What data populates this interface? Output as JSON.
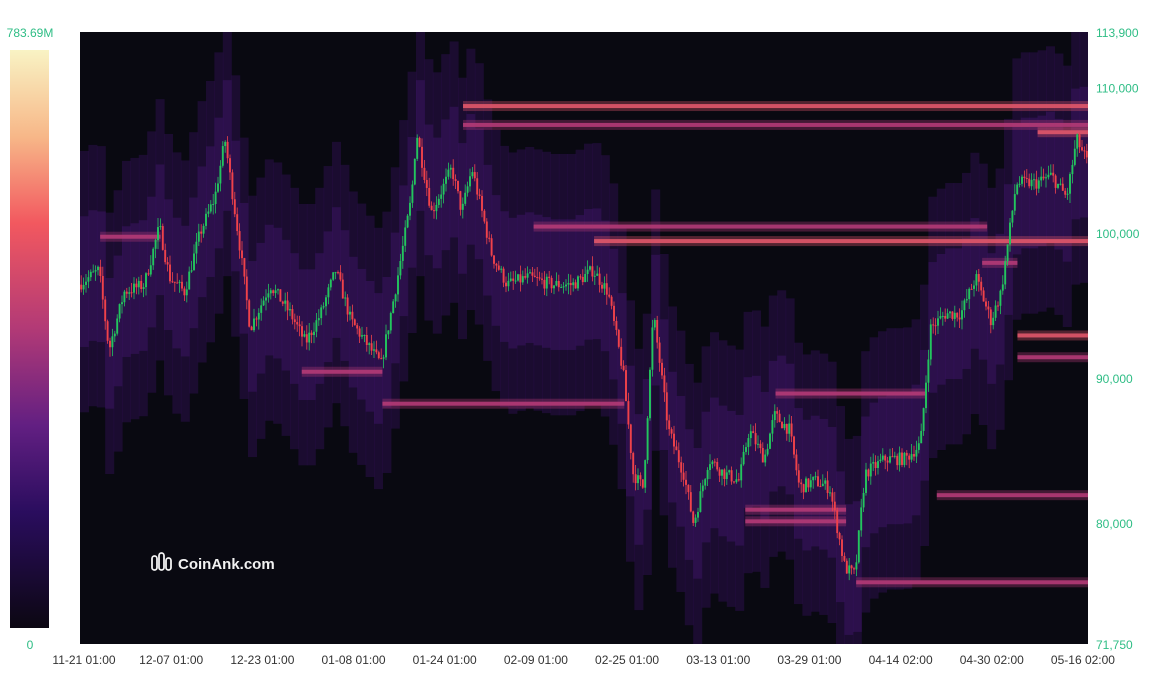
{
  "chart_data": {
    "type": "heatmap",
    "title": "",
    "watermark": {
      "text": "CoinAnk.com"
    },
    "colors": {
      "background": "#090911",
      "up_candle": "#23c55e",
      "down_candle": "#f0424a",
      "axis_text": "#2ebd85",
      "x_text": "#333333"
    },
    "colorbar": {
      "max_label": "783.69M",
      "min_label": "0",
      "stops": [
        "#f9f3c4",
        "#f7b788",
        "#f2585f",
        "#b33a76",
        "#621f82",
        "#2a0d5e",
        "#0c0712"
      ]
    },
    "y_axis": {
      "min": 71750,
      "max": 113900,
      "min_label": "71,750",
      "max_label": "113,900",
      "ticks": [
        "110,000",
        "100,000",
        "90,000",
        "80,000"
      ]
    },
    "x_axis": {
      "ticks": [
        "11-21 01:00",
        "12-07 01:00",
        "12-23 01:00",
        "01-08 01:00",
        "01-24 01:00",
        "02-09 01:00",
        "02-25 01:00",
        "03-13 01:00",
        "03-29 01:00",
        "04-14 02:00",
        "04-30 02:00",
        "05-16 02:00"
      ]
    },
    "price_path": [
      {
        "x": 0.0,
        "price": 96500
      },
      {
        "x": 0.02,
        "price": 97500
      },
      {
        "x": 0.03,
        "price": 92000
      },
      {
        "x": 0.045,
        "price": 96000
      },
      {
        "x": 0.065,
        "price": 96500
      },
      {
        "x": 0.08,
        "price": 100500
      },
      {
        "x": 0.09,
        "price": 97000
      },
      {
        "x": 0.105,
        "price": 96000
      },
      {
        "x": 0.12,
        "price": 100000
      },
      {
        "x": 0.135,
        "price": 102500
      },
      {
        "x": 0.145,
        "price": 106500
      },
      {
        "x": 0.16,
        "price": 99000
      },
      {
        "x": 0.17,
        "price": 93500
      },
      {
        "x": 0.19,
        "price": 96500
      },
      {
        "x": 0.21,
        "price": 94500
      },
      {
        "x": 0.225,
        "price": 92500
      },
      {
        "x": 0.24,
        "price": 94500
      },
      {
        "x": 0.255,
        "price": 97500
      },
      {
        "x": 0.27,
        "price": 94000
      },
      {
        "x": 0.285,
        "price": 92500
      },
      {
        "x": 0.3,
        "price": 91000
      },
      {
        "x": 0.315,
        "price": 96500
      },
      {
        "x": 0.33,
        "price": 102500
      },
      {
        "x": 0.335,
        "price": 107000
      },
      {
        "x": 0.35,
        "price": 101500
      },
      {
        "x": 0.37,
        "price": 104500
      },
      {
        "x": 0.38,
        "price": 101500
      },
      {
        "x": 0.39,
        "price": 104500
      },
      {
        "x": 0.41,
        "price": 98500
      },
      {
        "x": 0.425,
        "price": 96500
      },
      {
        "x": 0.445,
        "price": 97000
      },
      {
        "x": 0.47,
        "price": 96500
      },
      {
        "x": 0.49,
        "price": 96500
      },
      {
        "x": 0.51,
        "price": 97500
      },
      {
        "x": 0.525,
        "price": 96000
      },
      {
        "x": 0.54,
        "price": 90500
      },
      {
        "x": 0.55,
        "price": 83500
      },
      {
        "x": 0.56,
        "price": 82500
      },
      {
        "x": 0.57,
        "price": 94500
      },
      {
        "x": 0.585,
        "price": 86500
      },
      {
        "x": 0.6,
        "price": 83500
      },
      {
        "x": 0.61,
        "price": 80000
      },
      {
        "x": 0.625,
        "price": 84500
      },
      {
        "x": 0.64,
        "price": 83500
      },
      {
        "x": 0.655,
        "price": 83000
      },
      {
        "x": 0.665,
        "price": 86500
      },
      {
        "x": 0.68,
        "price": 84500
      },
      {
        "x": 0.69,
        "price": 87500
      },
      {
        "x": 0.705,
        "price": 86500
      },
      {
        "x": 0.715,
        "price": 82500
      },
      {
        "x": 0.73,
        "price": 83000
      },
      {
        "x": 0.745,
        "price": 82500
      },
      {
        "x": 0.76,
        "price": 77000
      },
      {
        "x": 0.77,
        "price": 76500
      },
      {
        "x": 0.78,
        "price": 83500
      },
      {
        "x": 0.8,
        "price": 84500
      },
      {
        "x": 0.82,
        "price": 84500
      },
      {
        "x": 0.835,
        "price": 85500
      },
      {
        "x": 0.845,
        "price": 93500
      },
      {
        "x": 0.86,
        "price": 94500
      },
      {
        "x": 0.875,
        "price": 94500
      },
      {
        "x": 0.89,
        "price": 97000
      },
      {
        "x": 0.905,
        "price": 94000
      },
      {
        "x": 0.915,
        "price": 96000
      },
      {
        "x": 0.93,
        "price": 103500
      },
      {
        "x": 0.95,
        "price": 103500
      },
      {
        "x": 0.965,
        "price": 104000
      },
      {
        "x": 0.98,
        "price": 102500
      },
      {
        "x": 0.99,
        "price": 106500
      },
      {
        "x": 1.0,
        "price": 105000
      }
    ],
    "liquidity_bands": [
      {
        "price": 108800,
        "x0": 0.38,
        "x1": 1.0,
        "intensity": 0.75
      },
      {
        "price": 107500,
        "x0": 0.38,
        "x1": 1.0,
        "intensity": 0.6
      },
      {
        "price": 107000,
        "x0": 0.95,
        "x1": 1.0,
        "intensity": 0.85
      },
      {
        "price": 100500,
        "x0": 0.45,
        "x1": 0.9,
        "intensity": 0.55
      },
      {
        "price": 99500,
        "x0": 0.51,
        "x1": 1.0,
        "intensity": 0.8
      },
      {
        "price": 99800,
        "x0": 0.02,
        "x1": 0.08,
        "intensity": 0.65
      },
      {
        "price": 98000,
        "x0": 0.895,
        "x1": 0.93,
        "intensity": 0.7
      },
      {
        "price": 93000,
        "x0": 0.93,
        "x1": 1.0,
        "intensity": 0.8
      },
      {
        "price": 91500,
        "x0": 0.93,
        "x1": 1.0,
        "intensity": 0.65
      },
      {
        "price": 90500,
        "x0": 0.22,
        "x1": 0.3,
        "intensity": 0.55
      },
      {
        "price": 89000,
        "x0": 0.69,
        "x1": 0.84,
        "intensity": 0.6
      },
      {
        "price": 88300,
        "x0": 0.3,
        "x1": 0.54,
        "intensity": 0.5
      },
      {
        "price": 82000,
        "x0": 0.85,
        "x1": 1.0,
        "intensity": 0.65
      },
      {
        "price": 81000,
        "x0": 0.66,
        "x1": 0.76,
        "intensity": 0.7
      },
      {
        "price": 80200,
        "x0": 0.66,
        "x1": 0.76,
        "intensity": 0.6
      },
      {
        "price": 76000,
        "x0": 0.77,
        "x1": 1.0,
        "intensity": 0.5
      }
    ]
  }
}
